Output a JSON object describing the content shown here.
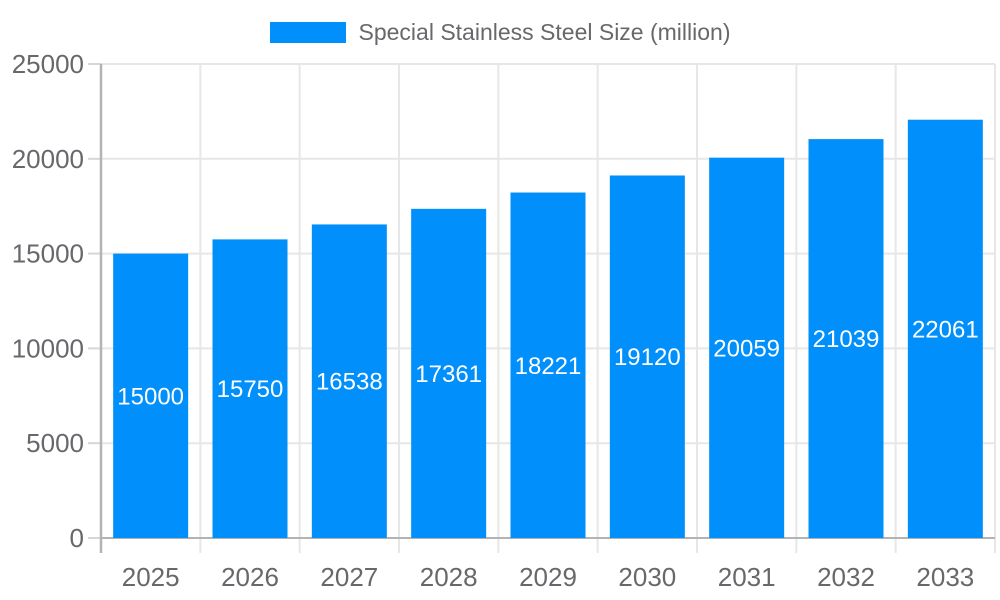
{
  "legend": {
    "label": "Special Stainless Steel Size (million)"
  },
  "chart_data": {
    "type": "bar",
    "title": "",
    "xlabel": "",
    "ylabel": "",
    "categories": [
      "2025",
      "2026",
      "2027",
      "2028",
      "2029",
      "2030",
      "2031",
      "2032",
      "2033"
    ],
    "series": [
      {
        "name": "Special Stainless Steel Size (million)",
        "values": [
          15000,
          15750,
          16538,
          17361,
          18221,
          19120,
          20059,
          21039,
          22061
        ]
      }
    ],
    "ylim": [
      0,
      25000
    ],
    "y_ticks": [
      0,
      5000,
      10000,
      15000,
      20000,
      25000
    ],
    "grid": true,
    "legend_position": "top",
    "data_labels": true,
    "colors": {
      "bar": "#008FFB",
      "bar_label": "#ffffff",
      "axis_label": "#66686b",
      "gridline": "#e7e7e7",
      "axis_line": "#b3b3b3",
      "tick": "#d6d6d6"
    }
  }
}
